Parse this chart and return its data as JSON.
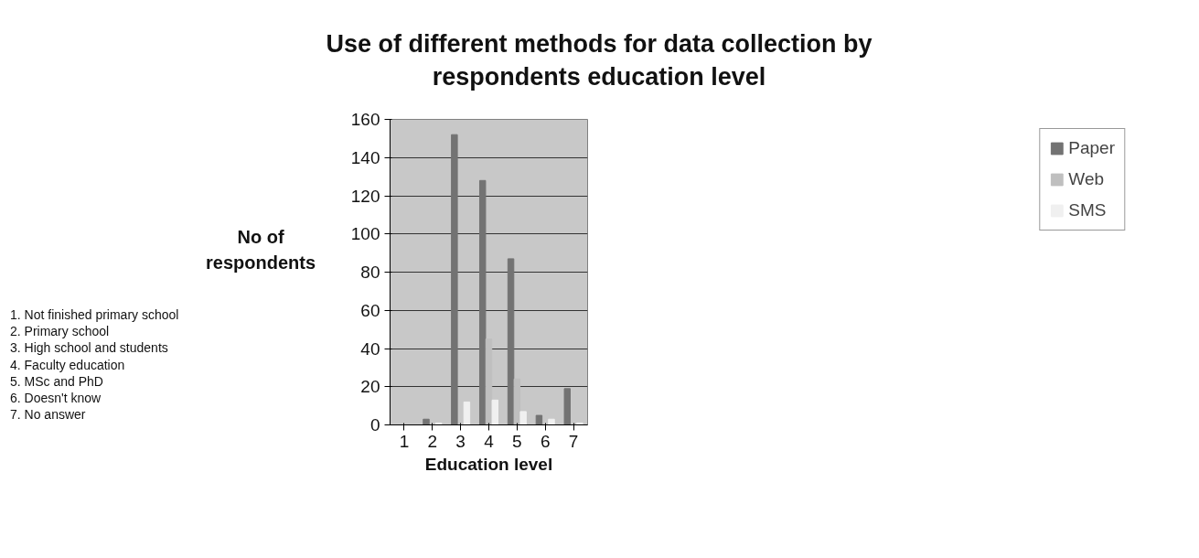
{
  "chart_data": {
    "type": "bar",
    "title": "Use of different methods for data collection by respondents education level",
    "xlabel": "Education level",
    "ylabel": "No of respondents",
    "categories": [
      "1",
      "2",
      "3",
      "4",
      "5",
      "6",
      "7"
    ],
    "series": [
      {
        "name": "Paper",
        "color": "#737373",
        "values": [
          0,
          3,
          152,
          128,
          87,
          5,
          19
        ]
      },
      {
        "name": "Web",
        "color": "#bfbfbf",
        "values": [
          0,
          0,
          0,
          45,
          24,
          0,
          0
        ]
      },
      {
        "name": "SMS",
        "color": "#f0f0f0",
        "values": [
          0,
          1,
          12,
          13,
          7,
          3,
          1
        ]
      }
    ],
    "ylim": [
      0,
      160
    ],
    "yticks": [
      0,
      20,
      40,
      60,
      80,
      100,
      120,
      140,
      160
    ],
    "grid": "y",
    "legend": "right",
    "annotations": [
      "1. Not finished primary school",
      "2. Primary school",
      "3. High school and students",
      "4. Faculty education",
      "5. MSc and PhD",
      "6. Doesn't know",
      "7. No answer"
    ]
  }
}
